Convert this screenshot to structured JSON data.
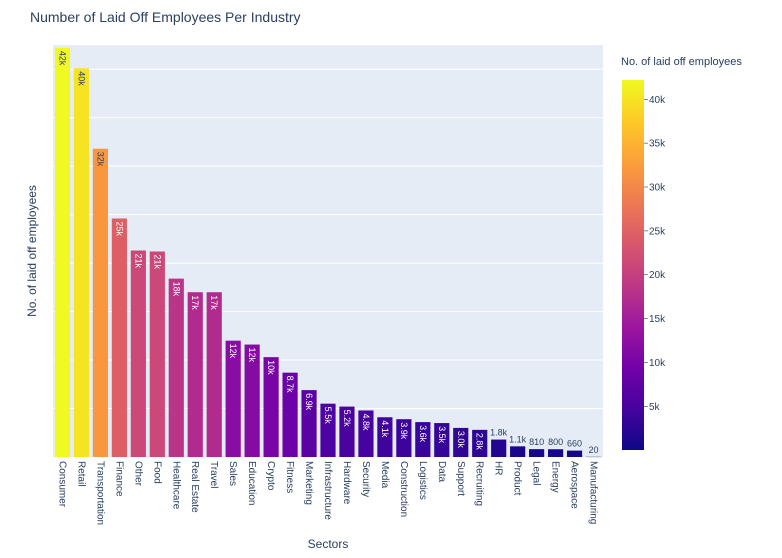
{
  "chart_data": {
    "type": "bar",
    "title": "Number of Laid Off Employees Per Industry",
    "xlabel": "Sectors",
    "ylabel": "No. of laid off employees",
    "ylim": [
      0,
      42500
    ],
    "grid": true,
    "categories": [
      "Consumer",
      "Retail",
      "Transportation",
      "Finance",
      "Other",
      "Food",
      "Healthcare",
      "Real Estate",
      "Travel",
      "Sales",
      "Education",
      "Crypto",
      "Fitness",
      "Marketing",
      "Infrastructure",
      "Hardware",
      "Security",
      "Media",
      "Construction",
      "Logistics",
      "Data",
      "Support",
      "Recruiting",
      "HR",
      "Product",
      "Legal",
      "Energy",
      "Aerospace",
      "Manufacturing"
    ],
    "values": [
      42200,
      40100,
      31800,
      24600,
      21300,
      21200,
      18400,
      17000,
      17000,
      12000,
      11600,
      10300,
      8700,
      6900,
      5500,
      5200,
      4800,
      4100,
      3900,
      3600,
      3500,
      3000,
      2800,
      1800,
      1100,
      810,
      800,
      660,
      20
    ],
    "labels": [
      "42k",
      "40k",
      "32k",
      "25k",
      "21k",
      "21k",
      "18k",
      "17k",
      "17k",
      "12k",
      "12k",
      "10k",
      "8.7k",
      "6.9k",
      "5.5k",
      "5.2k",
      "4.8k",
      "4.1k",
      "3.9k",
      "3.6k",
      "3.5k",
      "3.0k",
      "2.8k",
      "1.8k",
      "1.1k",
      "810",
      "800",
      "660",
      "20"
    ],
    "colorbar": {
      "title": "No. of laid off employees",
      "ticks": [
        "40k",
        "35k",
        "30k",
        "25k",
        "20k",
        "15k",
        "10k",
        "5k"
      ],
      "tick_values": [
        40000,
        35000,
        30000,
        25000,
        20000,
        15000,
        10000,
        5000
      ],
      "range": [
        20,
        42200
      ],
      "colorscale": [
        "#0d0887",
        "#46039f",
        "#7201a8",
        "#9c179e",
        "#bd3786",
        "#d8576b",
        "#ed7953",
        "#fb9f3a",
        "#fdca26",
        "#f0f921"
      ]
    },
    "colors": {
      "plot_bg": "#e5ecf6",
      "grid": "#ffffff",
      "text": "#2a3f5f"
    }
  }
}
